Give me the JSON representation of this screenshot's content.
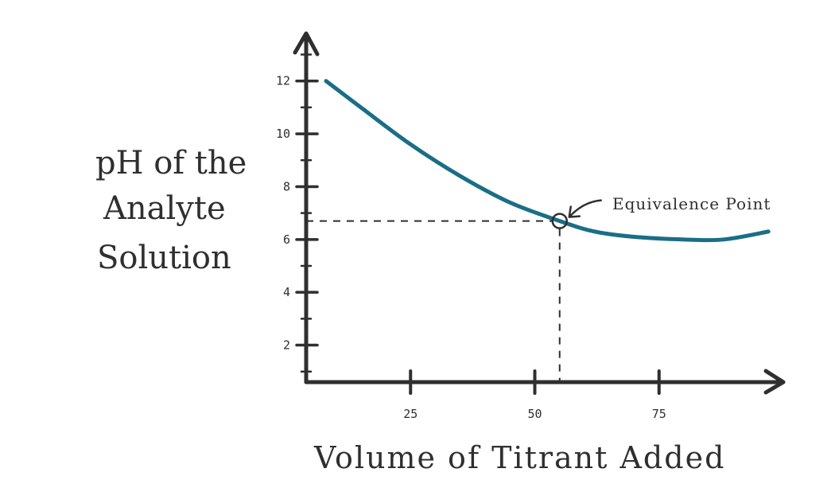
{
  "chart_data": {
    "type": "line",
    "title": "",
    "xlabel": "Volume of Titrant Added",
    "ylabel_lines": [
      "pH of the",
      "Analyte",
      "Solution"
    ],
    "x_ticks": [
      25,
      50,
      75
    ],
    "y_ticks": [
      2,
      4,
      6,
      8,
      10,
      12
    ],
    "xlim": [
      4,
      100
    ],
    "ylim": [
      0.6,
      13.8
    ],
    "series": [
      {
        "x": [
          8,
          15,
          25,
          35,
          45,
          55,
          62,
          70,
          80,
          88,
          97
        ],
        "y": [
          12.0,
          11.0,
          9.6,
          8.4,
          7.4,
          6.7,
          6.3,
          6.1,
          6.0,
          6.0,
          6.3
        ]
      }
    ],
    "annotation": {
      "label": "Equivalence Point",
      "x": 55,
      "y": 6.7
    },
    "grid": false,
    "colors": {
      "line": "#1a6e86",
      "axis": "#2f2f2f"
    }
  }
}
